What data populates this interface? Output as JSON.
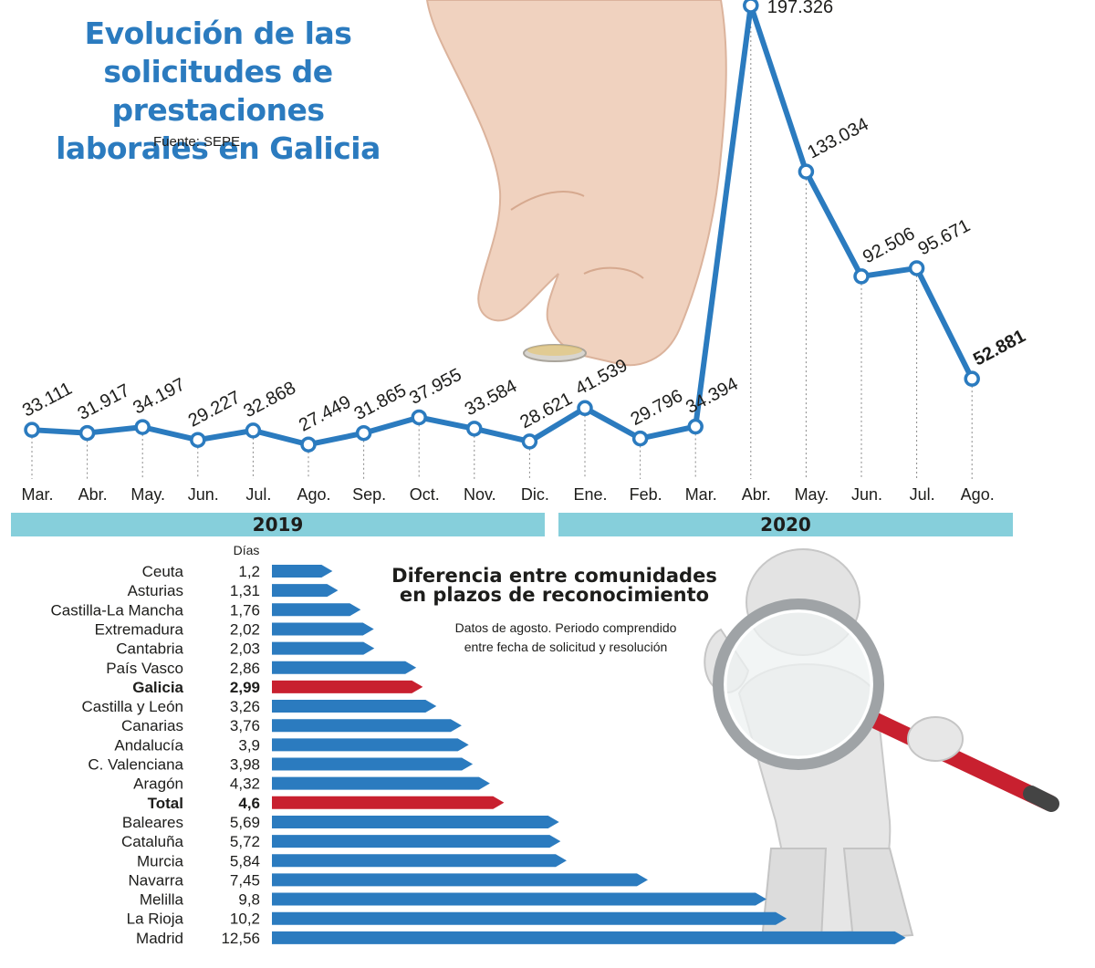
{
  "title_lines": [
    "Evolución de las",
    "solicitudes de prestaciones",
    "laborales en Galicia"
  ],
  "source": "Fuente: SEPE",
  "year_labels": [
    "2019",
    "2020"
  ],
  "chart_data": [
    {
      "type": "line",
      "title": "Evolución de las solicitudes de prestaciones laborales en Galicia",
      "categories": [
        "Mar.",
        "Abr.",
        "May.",
        "Jun.",
        "Jul.",
        "Ago.",
        "Sep.",
        "Oct.",
        "Nov.",
        "Dic.",
        "Ene.",
        "Feb.",
        "Mar.",
        "Abr.",
        "May.",
        "Jun.",
        "Jul.",
        "Ago."
      ],
      "groups": [
        {
          "label": "2019",
          "from": 0,
          "to": 9
        },
        {
          "label": "2020",
          "from": 10,
          "to": 17
        }
      ],
      "values": [
        33111,
        31917,
        34197,
        29227,
        32868,
        27449,
        31865,
        37955,
        33584,
        28621,
        41539,
        29796,
        34394,
        197326,
        133034,
        92506,
        95671,
        52881
      ],
      "value_labels": [
        "33.111",
        "31.917",
        "34.197",
        "29.227",
        "32.868",
        "27.449",
        "31.865",
        "37.955",
        "33.584",
        "28.621",
        "41.539",
        "29.796",
        "34.394",
        "197.326",
        "133.034",
        "92.506",
        "95.671",
        "52.881"
      ],
      "highlight_index": 17,
      "colors": {
        "line": "#2b7bbf",
        "marker_fill": "#ffffff"
      }
    },
    {
      "type": "bar",
      "title": "Diferencia entre comunidades en plazos de reconocimiento",
      "subtitle": "Datos de agosto. Periodo comprendido entre fecha de solicitud y resolución",
      "value_header": "Días",
      "categories": [
        "Ceuta",
        "Asturias",
        "Castilla-La Mancha",
        "Extremadura",
        "Cantabria",
        "País Vasco",
        "Galicia",
        "Castilla y León",
        "Canarias",
        "Andalucía",
        "C. Valenciana",
        "Aragón",
        "Total",
        "Baleares",
        "Cataluña",
        "Murcia",
        "Navarra",
        "Melilla",
        "La Rioja",
        "Madrid"
      ],
      "values": [
        1.2,
        1.31,
        1.76,
        2.02,
        2.03,
        2.86,
        2.99,
        3.26,
        3.76,
        3.9,
        3.98,
        4.32,
        4.6,
        5.69,
        5.72,
        5.84,
        7.45,
        9.8,
        10.2,
        12.56
      ],
      "value_labels": [
        "1,2",
        "1,31",
        "1,76",
        "2,02",
        "2,03",
        "2,86",
        "2,99",
        "3,26",
        "3,76",
        "3,9",
        "3,98",
        "4,32",
        "4,6",
        "5,69",
        "5,72",
        "5,84",
        "7,45",
        "9,8",
        "10,2",
        "12,56"
      ],
      "highlight": [
        "Galicia",
        "Total"
      ],
      "colors": {
        "bar": "#2b7bbf",
        "highlight": "#c8202f"
      }
    }
  ],
  "sub_title_lines": [
    "Diferencia entre comunidades",
    "en plazos de reconocimiento"
  ],
  "sub_note_lines": [
    "Datos de agosto. Periodo comprendido",
    "entre fecha de solicitud y resolución"
  ],
  "illustrations": [
    "hand-with-coin-icon",
    "figure-with-magnifier-icon"
  ]
}
